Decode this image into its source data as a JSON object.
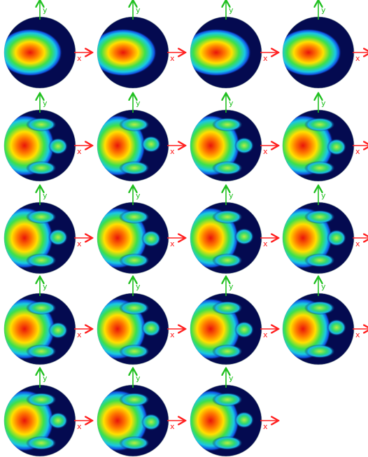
{
  "panels": [
    {
      "x_label": "x",
      "y_label": "y"
    },
    {
      "x_label": "x",
      "y_label": "y"
    },
    {
      "x_label": "x",
      "y_label": "y"
    },
    {
      "x_label": "x",
      "y_label": "y"
    },
    {
      "x_label": "x",
      "y_label": "y"
    },
    {
      "x_label": "x",
      "y_label": "y"
    },
    {
      "x_label": "x",
      "y_label": "y"
    },
    {
      "x_label": "x",
      "y_label": "y"
    },
    {
      "x_label": "x",
      "y_label": "y"
    },
    {
      "x_label": "x",
      "y_label": "y"
    },
    {
      "x_label": "x",
      "y_label": "y"
    },
    {
      "x_label": "x",
      "y_label": "y"
    },
    {
      "x_label": "x",
      "y_label": "y"
    },
    {
      "x_label": "x",
      "y_label": "y"
    },
    {
      "x_label": "x",
      "y_label": "y"
    },
    {
      "x_label": "x",
      "y_label": "y"
    },
    {
      "x_label": "x",
      "y_label": "y"
    },
    {
      "x_label": "x",
      "y_label": "y"
    },
    {
      "x_label": "x",
      "y_label": "y"
    }
  ]
}
